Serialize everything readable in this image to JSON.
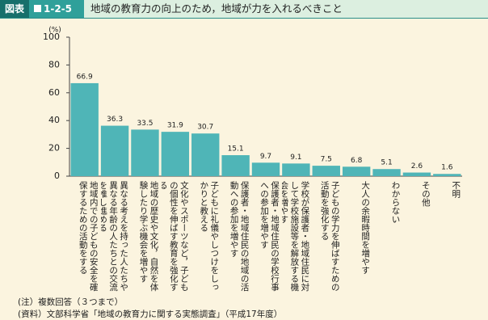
{
  "header": {
    "label": "図表",
    "number": "1-2-5",
    "title": "地域の教育力の向上のため，地域が力を入れるべきこと"
  },
  "chart_data": {
    "type": "bar",
    "unit_label": "(%)",
    "categories": [
      "地域内での子どもの安全を確保するための活動をする",
      "異なる考えを持った人たちや異なる年齢の人たちとの交流を推し進める",
      "地域の歴史や文化，自然を体験したり学ぶ機会を増やす",
      "文化やスポーツなど，子どもの個性を伸ばす教育を強化する",
      "子どもに礼儀やしつけをしっかりと教える",
      "保護者・地域住民の地域の活動への参加を増やす",
      "保護者・地域住民の学校行事への参加を増やす",
      "学校が保護者・地域住民に対して学校施設等を解放する機会を増やす",
      "子どもの学力を伸ばすための活動を強化する",
      "大人の余暇時間を増やす",
      "わからない",
      "その他",
      "不明"
    ],
    "values": [
      66.9,
      36.3,
      33.5,
      31.9,
      30.7,
      15.1,
      9.7,
      9.1,
      7.5,
      6.8,
      5.1,
      2.6,
      1.6
    ],
    "color": "#4fb5b7",
    "ylim": [
      0,
      100
    ],
    "yticks": [
      0,
      20,
      40,
      60,
      80,
      100
    ]
  },
  "notes": [
    "(注）複数回答（３つまで）",
    "(資料）文部科学省「地域の教育力に関する実態調査」（平成17年度）"
  ]
}
